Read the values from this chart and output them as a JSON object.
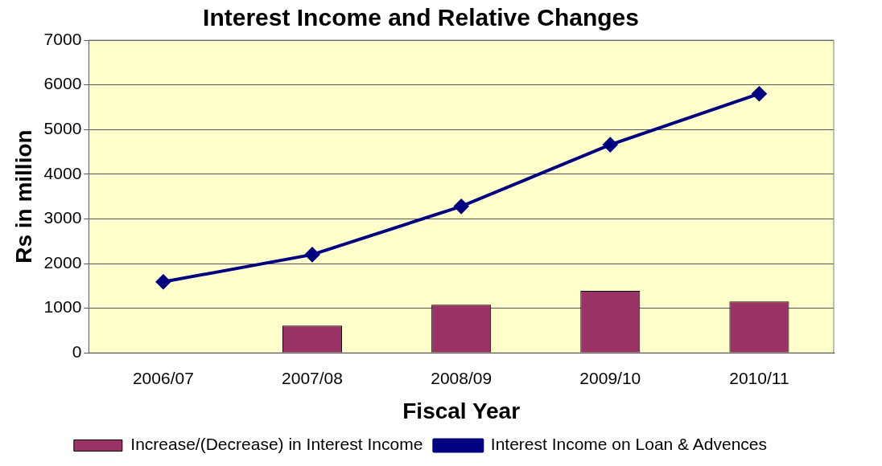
{
  "chart_data": {
    "type": "bar",
    "title": "Interest Income and Relative Changes",
    "xlabel": "Fiscal Year",
    "ylabel": "Rs in million",
    "categories": [
      "2006/07",
      "2007/08",
      "2008/09",
      "2009/10",
      "2010/11"
    ],
    "series": [
      {
        "name": "Increase/(Decrease) in Interest Income",
        "color": "#993366",
        "values": [
          null,
          610,
          1080,
          1390,
          1150
        ]
      },
      {
        "name": "Interest Income on Loan & Advences",
        "type": "line",
        "color": "#000080",
        "values": [
          1590,
          2200,
          3280,
          4660,
          5800
        ],
        "marker": "diamond"
      }
    ],
    "ylim": [
      0,
      7000
    ],
    "yticks": [
      0,
      1000,
      2000,
      3000,
      4000,
      5000,
      6000,
      7000
    ],
    "grid": "y",
    "legend": "bottom",
    "line_style": "solid"
  }
}
